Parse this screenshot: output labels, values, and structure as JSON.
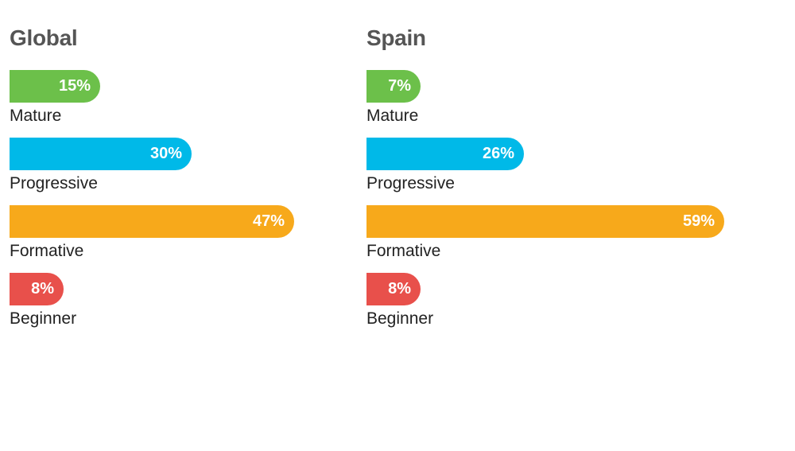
{
  "colors": {
    "Mature": "#6cc04a",
    "Progressive": "#00b9e8",
    "Formative": "#f7a91b",
    "Beginner": "#e8504b"
  },
  "chart_data": [
    {
      "type": "bar",
      "orientation": "horizontal",
      "title": "Global",
      "categories": [
        "Mature",
        "Progressive",
        "Formative",
        "Beginner"
      ],
      "values": [
        15,
        30,
        47,
        8
      ],
      "value_labels": [
        "15%",
        "30%",
        "47%",
        "8%"
      ],
      "unit": "%",
      "xlim": [
        0,
        59
      ]
    },
    {
      "type": "bar",
      "orientation": "horizontal",
      "title": "Spain",
      "categories": [
        "Mature",
        "Progressive",
        "Formative",
        "Beginner"
      ],
      "values": [
        7,
        26,
        59,
        8
      ],
      "value_labels": [
        "7%",
        "26%",
        "59%",
        "8%"
      ],
      "unit": "%",
      "xlim": [
        0,
        59
      ]
    }
  ]
}
